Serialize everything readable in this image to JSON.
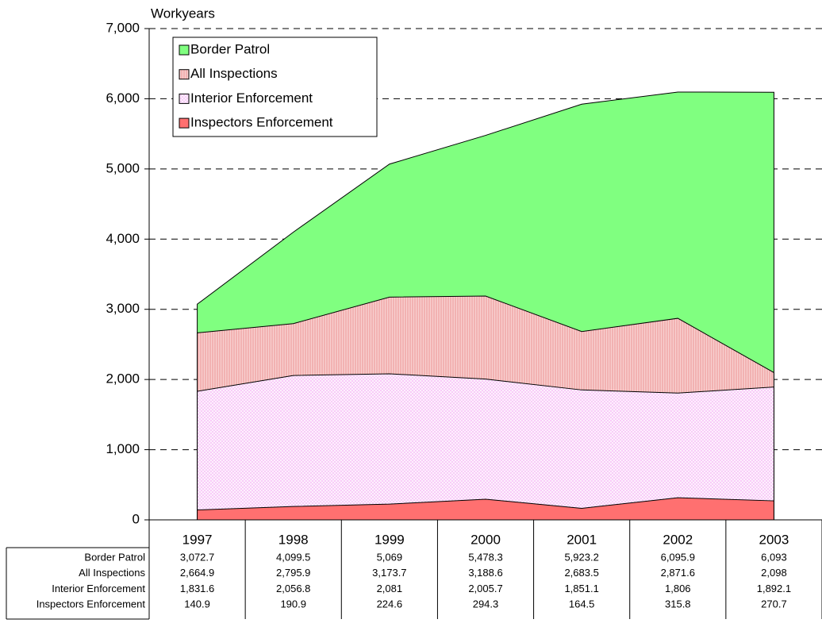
{
  "chart_data": {
    "type": "area",
    "y_label": "Workyears",
    "categories": [
      "1997",
      "1998",
      "1999",
      "2000",
      "2001",
      "2002",
      "2003"
    ],
    "series": [
      {
        "name": "Border Patrol",
        "color": "#80ff80",
        "values": [
          3072.7,
          4099.5,
          5069,
          5478.3,
          5923.2,
          6095.9,
          6093
        ],
        "value_labels": [
          "3,072.7",
          "4,099.5",
          "5,069",
          "5,478.3",
          "5,923.2",
          "6,095.9",
          "6,093"
        ]
      },
      {
        "name": "All Inspections",
        "color": "#f0a8a8",
        "values": [
          2664.9,
          2795.9,
          3173.7,
          3188.6,
          2683.5,
          2871.6,
          2098
        ],
        "value_labels": [
          "2,664.9",
          "2,795.9",
          "3,173.7",
          "3,188.6",
          "2,683.5",
          "2,871.6",
          "2,098"
        ]
      },
      {
        "name": "Interior Enforcement",
        "color": "#f8c8f8",
        "values": [
          1831.6,
          2056.8,
          2081,
          2005.7,
          1851.1,
          1806,
          1892.1
        ],
        "value_labels": [
          "1,831.6",
          "2,056.8",
          "2,081",
          "2,005.7",
          "1,851.1",
          "1,806",
          "1,892.1"
        ]
      },
      {
        "name": "Inspectors Enforcement",
        "color": "#ff7070",
        "values": [
          140.9,
          190.9,
          224.6,
          294.3,
          164.5,
          315.8,
          270.7
        ],
        "value_labels": [
          "140.9",
          "190.9",
          "224.6",
          "294.3",
          "164.5",
          "315.8",
          "270.7"
        ]
      }
    ],
    "ylim": [
      0,
      7000
    ],
    "yticks": [
      0,
      {
        "value": 1000,
        "label": "1,000"
      },
      {
        "value": 2000,
        "label": "2,000"
      },
      {
        "value": 3000,
        "label": "3,000"
      },
      {
        "value": 4000,
        "label": "4,000"
      },
      {
        "value": 5000,
        "label": "5,000"
      },
      {
        "value": 6000,
        "label": "6,000"
      },
      {
        "value": 7000,
        "label": "7,000"
      }
    ],
    "grid": true,
    "legend": "upper left"
  }
}
